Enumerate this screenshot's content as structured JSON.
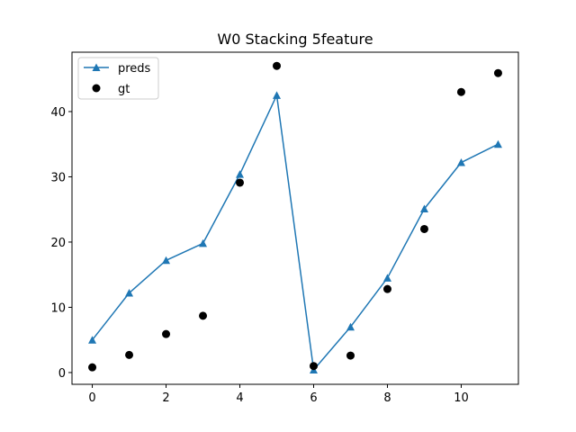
{
  "chart_data": {
    "type": "line",
    "title": "W0 Stacking 5feature",
    "xlabel": "",
    "ylabel": "",
    "xlim": [
      -0.55,
      11.55
    ],
    "ylim": [
      -1.8,
      49.1
    ],
    "xticks": [
      0,
      2,
      4,
      6,
      8,
      10
    ],
    "yticks": [
      0,
      10,
      20,
      30,
      40
    ],
    "grid": false,
    "legend_position": "top-left",
    "x": [
      0,
      1,
      2,
      3,
      4,
      5,
      6,
      7,
      8,
      9,
      10,
      11
    ],
    "series": [
      {
        "name": "preds",
        "style": "line-triangle",
        "color": "#1f77b4",
        "values": [
          5.0,
          12.2,
          17.2,
          19.8,
          30.4,
          42.5,
          0.4,
          7.0,
          14.5,
          25.1,
          32.2,
          35.0
        ]
      },
      {
        "name": "gt",
        "style": "scatter-circle",
        "color": "#000000",
        "values": [
          0.8,
          2.7,
          5.9,
          8.7,
          29.1,
          47.0,
          1.0,
          2.6,
          12.8,
          22.0,
          43.0,
          45.9
        ]
      }
    ]
  }
}
